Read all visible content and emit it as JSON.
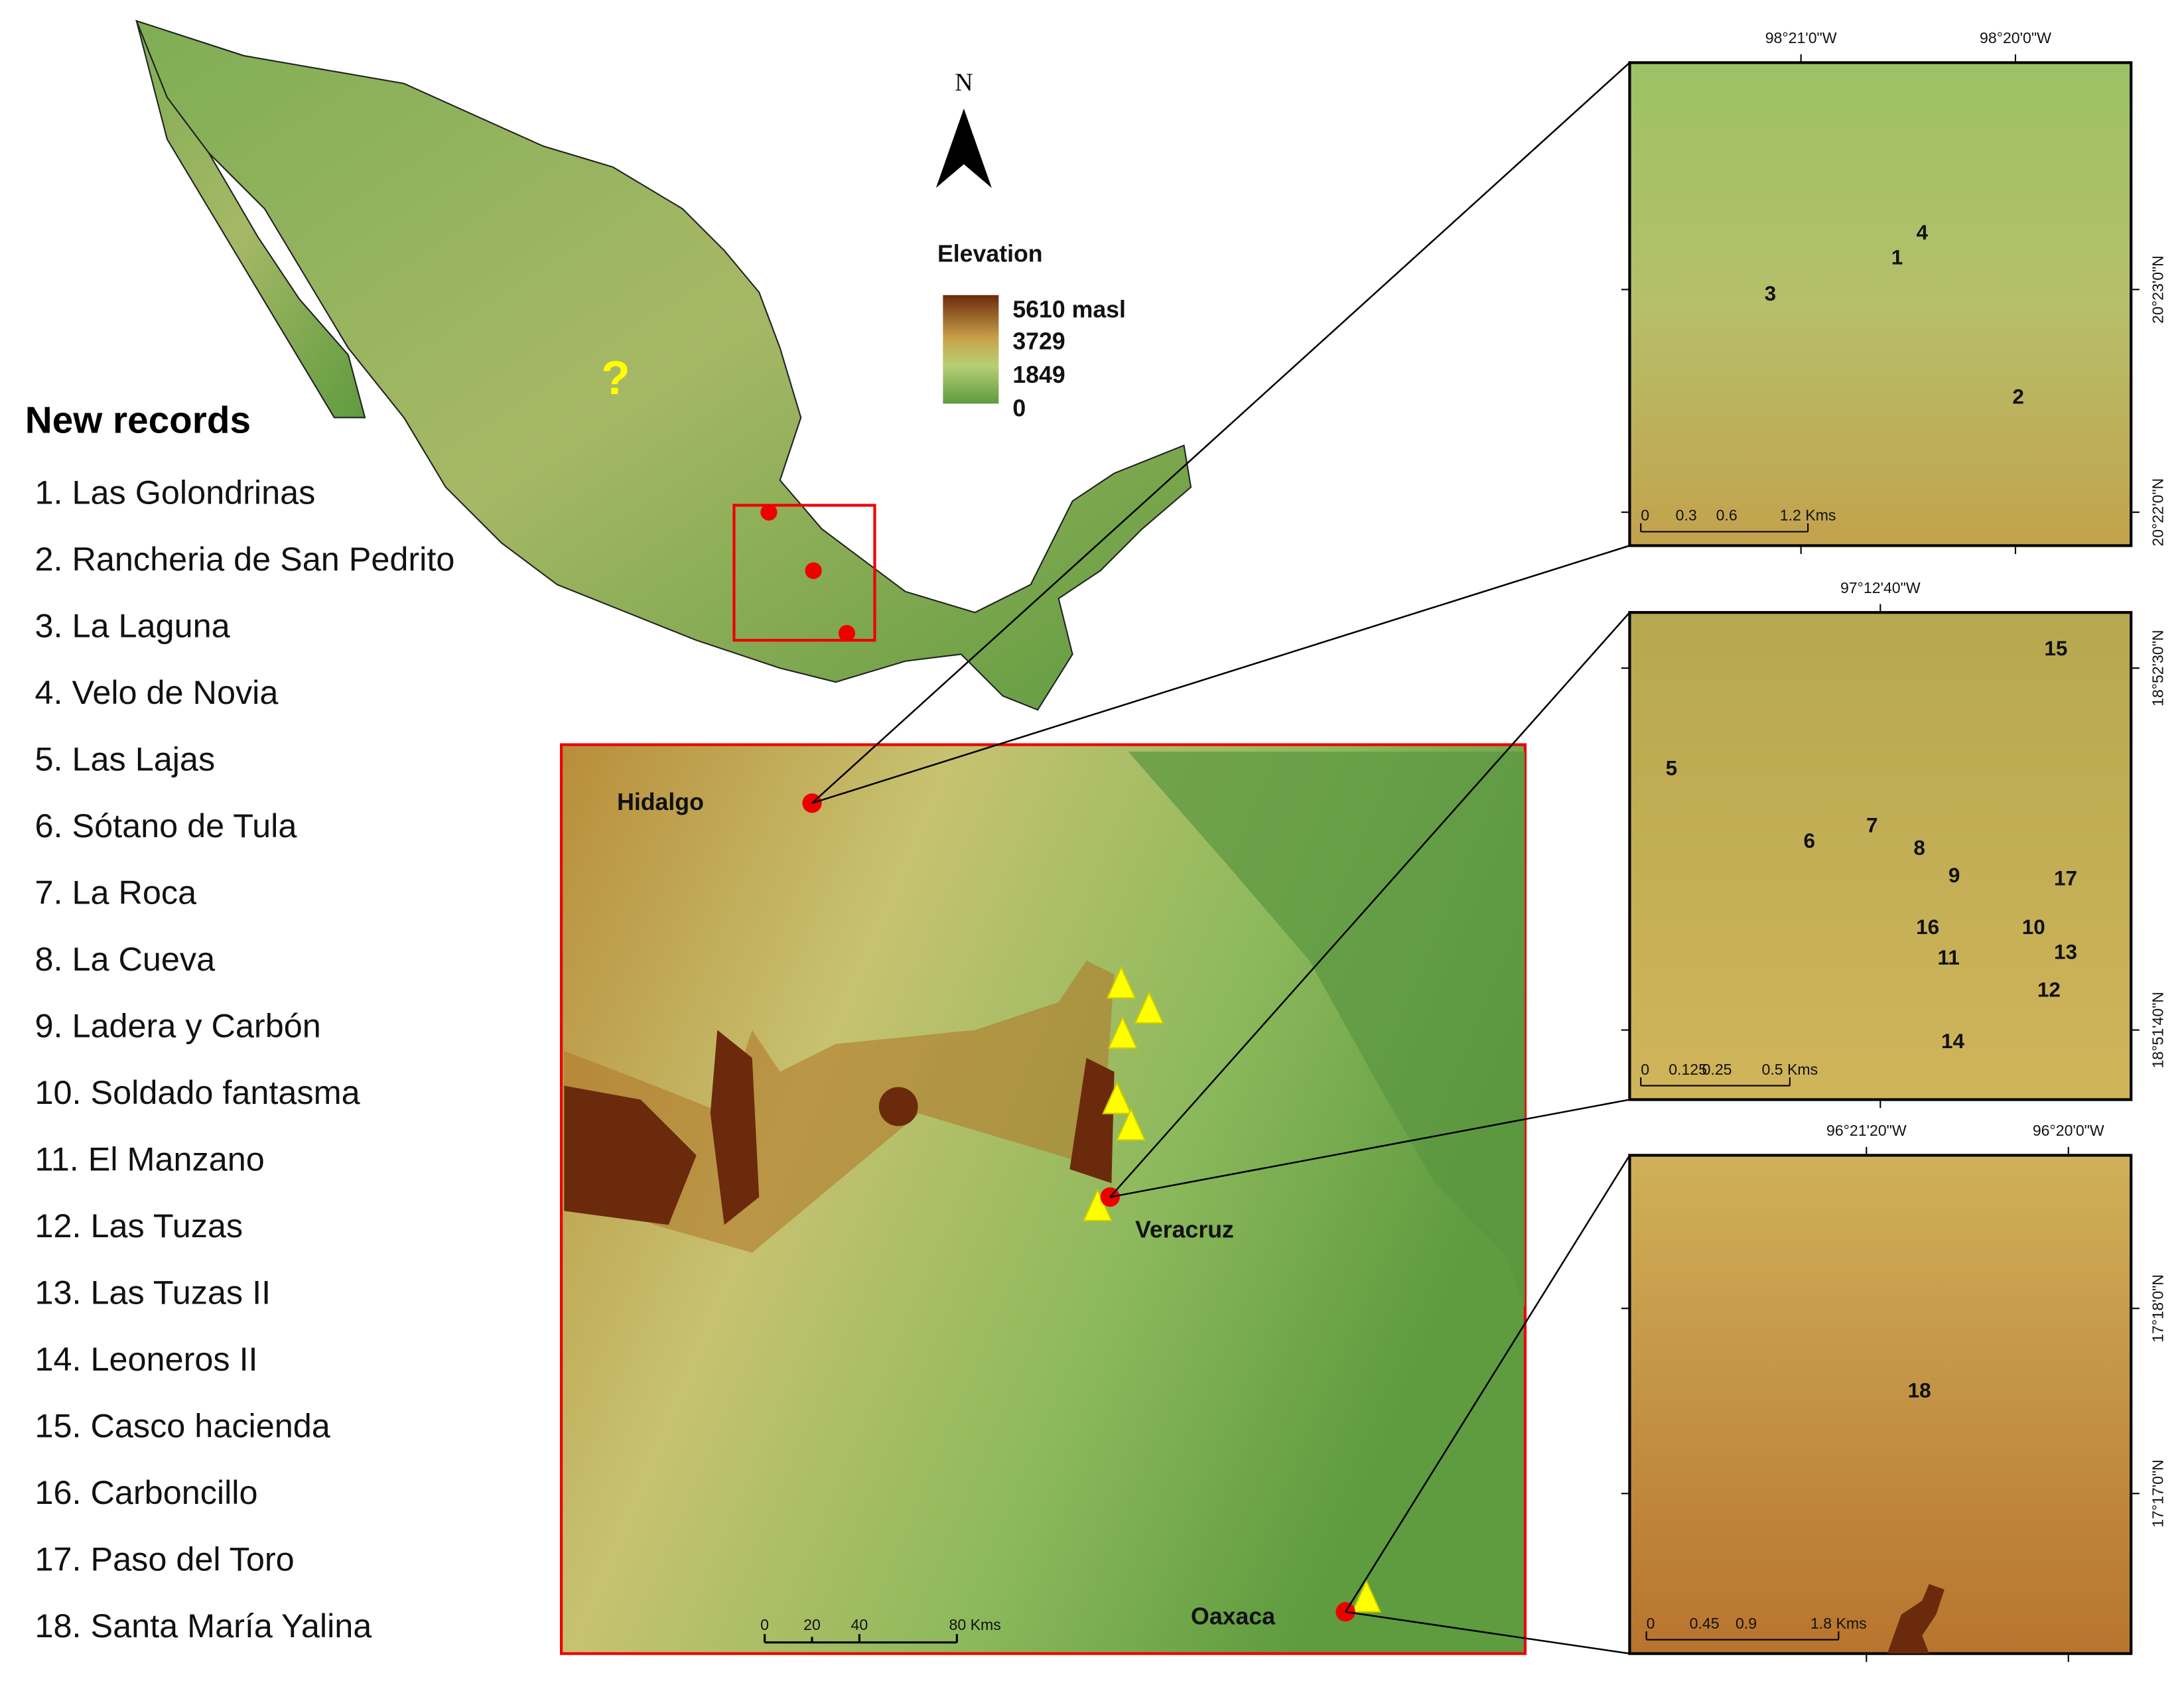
{
  "north_arrow": "N",
  "elevation_legend": {
    "title": "Elevation",
    "labels": [
      "5610 masl",
      "3729",
      "1849",
      "0"
    ]
  },
  "new_records": {
    "title": "New records",
    "items": [
      "1. Las Golondrinas",
      "2. Rancheria de San Pedrito",
      "3. La Laguna",
      "4. Velo de Novia",
      "5. Las Lajas",
      "6. Sótano de Tula",
      "7. La Roca",
      "8. La Cueva",
      "9. Ladera y Carbón",
      "10. Soldado fantasma",
      "11. El Manzano",
      "12. Las Tuzas",
      "13. Las Tuzas II",
      "14. Leoneros II",
      "15. Casco hacienda",
      "16. Carboncillo",
      "17. Paso del Toro",
      "18. Santa María Yalina"
    ]
  },
  "mexico_map": {
    "unknown_marker": "?"
  },
  "detail_map": {
    "labels": [
      "Hidalgo",
      "Veracruz",
      "Oaxaca"
    ],
    "scale_labels": [
      "0",
      "20",
      "40",
      "80 Kms"
    ]
  },
  "insets": [
    {
      "x_labels": [
        "98°21'0\"W",
        "98°20'0\"W"
      ],
      "y_labels": [
        "20°23'0\"N",
        "20°22'0\"N"
      ],
      "scale_labels": [
        "0",
        "0.3",
        "0.6",
        "1.2 Kms"
      ],
      "sites": [
        "4",
        "1",
        "3",
        "2"
      ]
    },
    {
      "x_labels": [
        "97°12'40\"W"
      ],
      "y_labels": [
        "18°52'30\"N",
        "18°51'40\"N"
      ],
      "scale_labels": [
        "0",
        "0.125",
        "0.25",
        "0.5 Kms"
      ],
      "sites": [
        "15",
        "5",
        "6",
        "7",
        "8",
        "9",
        "17",
        "16",
        "10",
        "13",
        "11",
        "12",
        "14"
      ]
    },
    {
      "x_labels": [
        "96°21'20\"W",
        "96°20'0\"W"
      ],
      "y_labels": [
        "17°18'0\"N",
        "17°17'0\"N"
      ],
      "scale_labels": [
        "0",
        "0.45",
        "0.9",
        "1.8 Kms"
      ],
      "sites": [
        "18"
      ]
    }
  ]
}
